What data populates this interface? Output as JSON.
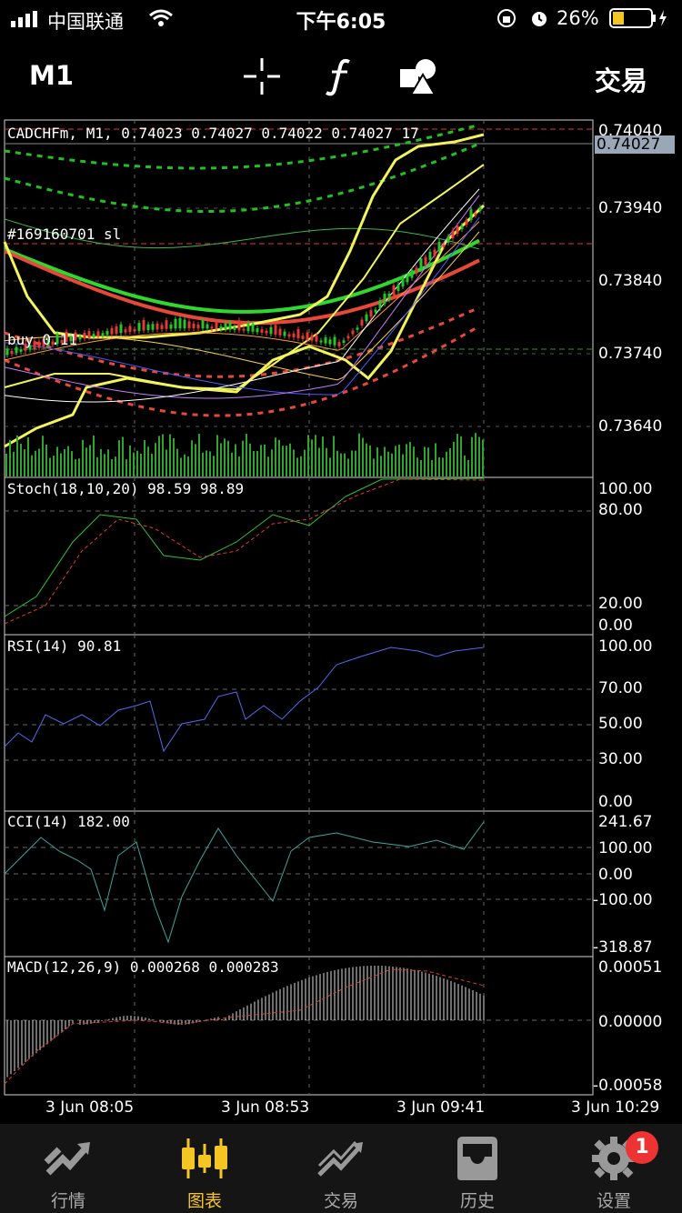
{
  "status_bar": {
    "carrier": "中国联通",
    "time": "下午6:05",
    "battery": "26%"
  },
  "top_bar": {
    "timeframe": "M1",
    "trade_label": "交易",
    "icons": [
      "crosshair-icon",
      "function-icon",
      "objects-icon"
    ]
  },
  "chart": {
    "header": "CADCHFm, M1, 0.74023 0.74027 0.74022 0.74027 17",
    "current_price": "0.74027",
    "order_label_sl": "#169160701 sl",
    "order_label_buy": "buy 0.11",
    "price_axis": [
      "0.74040",
      "0.73940",
      "0.73840",
      "0.73740",
      "0.73640"
    ],
    "time_axis": [
      "3 Jun 08:05",
      "3 Jun 08:53",
      "3 Jun 09:41",
      "3 Jun 10:29"
    ],
    "colors": {
      "up": "#29c429",
      "down": "#e53935",
      "ma_yellow": "#f3f35a",
      "ma_green": "#2fd82f",
      "ma_red": "#e8483a",
      "rsi": "#4a6ff0",
      "cci": "#3ea6a0",
      "macd": "#dddddd"
    }
  },
  "indicators": {
    "stoch": {
      "label": "Stoch(18,10,20) 98.59 98.89",
      "levels": [
        "100.00",
        "80.00",
        "20.00",
        "0.00"
      ]
    },
    "rsi": {
      "label": "RSI(14) 90.81",
      "levels": [
        "100.00",
        "70.00",
        "50.00",
        "30.00",
        "0.00"
      ]
    },
    "cci": {
      "label": "CCI(14) 182.00",
      "levels": [
        "241.67",
        "100.00",
        "0.00",
        "-100.00",
        "-318.87"
      ]
    },
    "macd": {
      "label": "MACD(12,26,9) 0.000268 0.000283",
      "levels": [
        "0.00051",
        "0.00000",
        "-0.00058"
      ]
    }
  },
  "tab_bar": {
    "tabs": [
      {
        "label": "行情",
        "icon": "quotes-icon"
      },
      {
        "label": "图表",
        "icon": "chart-candles-icon"
      },
      {
        "label": "交易",
        "icon": "trade-icon"
      },
      {
        "label": "历史",
        "icon": "history-icon"
      },
      {
        "label": "设置",
        "icon": "settings-icon"
      }
    ],
    "active_index": 1,
    "settings_badge": "1"
  }
}
